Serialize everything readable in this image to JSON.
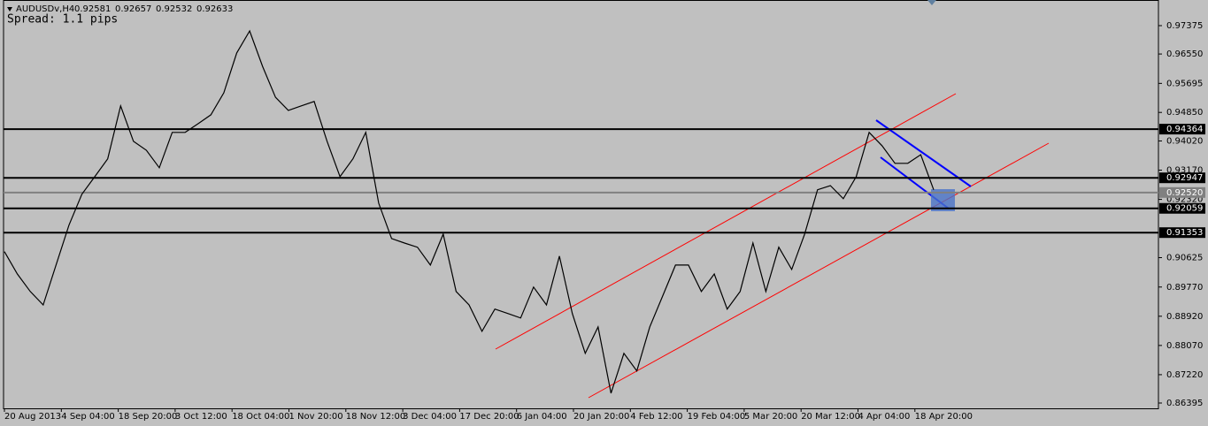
{
  "chart_data": {
    "type": "line",
    "title": "AUDUSDv,H4",
    "ohlc": [
      0.92581,
      0.92657,
      0.92532,
      0.92633
    ],
    "spread": "Spread: 1.1 pips",
    "color": "#000000",
    "values": [
      0.908,
      0.9015,
      0.8964,
      0.8925,
      0.9041,
      0.9157,
      0.9247,
      0.9298,
      0.935,
      0.9504,
      0.9401,
      0.9375,
      0.9324,
      0.9427,
      0.9427,
      0.9452,
      0.9478,
      0.9542,
      0.9658,
      0.9722,
      0.9619,
      0.9529,
      0.9491,
      0.9504,
      0.9517,
      0.9401,
      0.9298,
      0.935,
      0.9427,
      0.9221,
      0.9118,
      0.9105,
      0.9093,
      0.9041,
      0.9131,
      0.8964,
      0.8925,
      0.8848,
      0.8913,
      0.89,
      0.8887,
      0.8977,
      0.8925,
      0.9067,
      0.89,
      0.8784,
      0.8861,
      0.8668,
      0.8784,
      0.8733,
      0.8861,
      0.8951,
      0.9041,
      0.9041,
      0.8964,
      0.9015,
      0.8913,
      0.8964,
      0.9105,
      0.8964,
      0.9093,
      0.9028,
      0.9131,
      0.926,
      0.9272,
      0.9234,
      0.9298,
      0.9427,
      0.9388,
      0.9337,
      0.9337,
      0.9362,
      0.926
    ],
    "time_labels": [
      "20 Aug 2013",
      "4 Sep 04:00",
      "18 Sep 20:00",
      "3 Oct 12:00",
      "18 Oct 04:00",
      "1 Nov 20:00",
      "18 Nov 12:00",
      "3 Dec 04:00",
      "17 Dec 20:00",
      "6 Jan 04:00",
      "20 Jan 20:00",
      "4 Feb 12:00",
      "19 Feb 04:00",
      "5 Mar 20:00",
      "20 Mar 12:00",
      "4 Apr 04:00",
      "18 Apr 20:00"
    ],
    "ylim": [
      0.86241,
      0.98121
    ],
    "yticks": [
      0.97375,
      {
        "value": 0.9655,
        "label": "0.96550"
      },
      0.95695,
      {
        "value": 0.9485,
        "label": "0.94850"
      },
      {
        "value": 0.9402,
        "label": "0.94020"
      },
      {
        "value": 0.9317,
        "label": "0.93170"
      },
      {
        "value": 0.9232,
        "label": "0.92320"
      },
      0.90625,
      {
        "value": 0.8977,
        "label": "0.89770"
      },
      {
        "value": 0.8892,
        "label": "0.88920"
      },
      {
        "value": 0.8807,
        "label": "0.88070"
      },
      {
        "value": 0.8722,
        "label": "0.87220"
      },
      0.86395
    ],
    "levels": [
      {
        "value": 0.94364,
        "color": "#000000"
      },
      {
        "value": 0.92947,
        "color": "#000000"
      },
      {
        "value": 0.9252,
        "label": "0.92520",
        "color": "#808080"
      },
      {
        "value": 0.92059,
        "color": "#000000"
      },
      {
        "value": 0.91353,
        "color": "#000000"
      }
    ]
  }
}
